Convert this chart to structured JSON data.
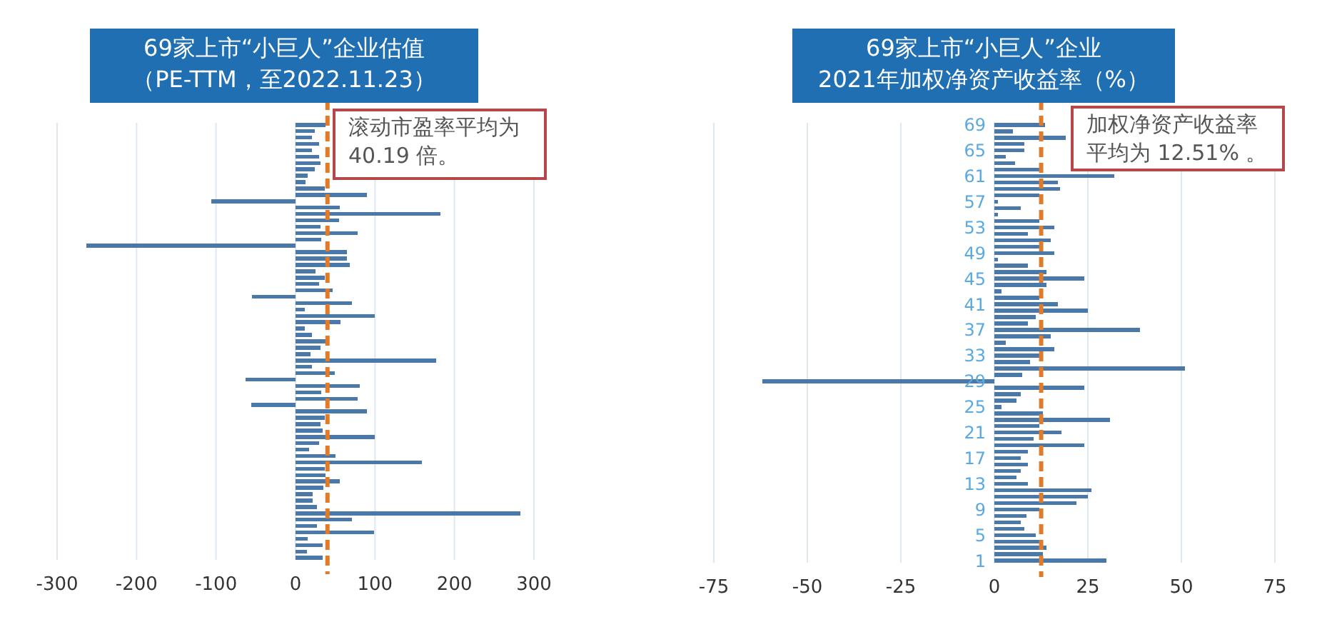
{
  "chart_data": [
    {
      "type": "bar",
      "orientation": "horizontal",
      "title": "69家上市“小巨人”企业估值",
      "subtitle": "（PE-TTM，至2022.11.23）",
      "categories": [
        null,
        null,
        null,
        null,
        null,
        null,
        null,
        null,
        null,
        null,
        null,
        null,
        null,
        null,
        null,
        null,
        null,
        null,
        null,
        null,
        null,
        null,
        null,
        null,
        null,
        null,
        null,
        null,
        null,
        null,
        null,
        null,
        null,
        null,
        null,
        null,
        null,
        null,
        null,
        null,
        null,
        null,
        null,
        null,
        null,
        null,
        null,
        null,
        null,
        null,
        null,
        null,
        null,
        null,
        null,
        null,
        null,
        null,
        null,
        null,
        null,
        null,
        null,
        null,
        null,
        null,
        null,
        null,
        null
      ],
      "values": [
        38,
        24,
        21,
        30,
        21,
        30,
        31,
        24,
        15,
        13,
        37,
        90,
        -106,
        56,
        182,
        55,
        31,
        78,
        32,
        -263,
        65,
        65,
        68,
        25,
        37,
        30,
        47,
        -55,
        71,
        12,
        100,
        57,
        12,
        21,
        38,
        31,
        19,
        177,
        21,
        49,
        -63,
        81,
        32,
        78,
        -56,
        90,
        37,
        31,
        34,
        100,
        30,
        17,
        50,
        159,
        37,
        38,
        56,
        35,
        22,
        22,
        27,
        283,
        71,
        27,
        99,
        15,
        34,
        14,
        34
      ],
      "color": "#4a78a8",
      "xlim": [
        -300,
        300
      ],
      "xticks": [
        -300,
        -200,
        -100,
        0,
        100,
        200,
        300
      ],
      "grid": "x",
      "ref_lines": [
        {
          "axis": "x",
          "value": 40.19,
          "label": "滚动市盈率平均为 40.19 倍。",
          "color": "#e07b2a",
          "line_style": "dashed"
        }
      ]
    },
    {
      "type": "bar",
      "orientation": "horizontal",
      "title": "69家上市“小巨人”企业",
      "subtitle": "2021年加权净资产收益率（%）",
      "categories": [
        "69",
        null,
        null,
        null,
        "65",
        null,
        null,
        null,
        "61",
        null,
        null,
        null,
        "57",
        null,
        null,
        null,
        "53",
        null,
        null,
        null,
        "49",
        null,
        null,
        null,
        "45",
        null,
        null,
        null,
        "41",
        null,
        null,
        null,
        "37",
        null,
        null,
        null,
        "33",
        null,
        null,
        null,
        "29",
        null,
        null,
        null,
        "25",
        null,
        null,
        null,
        "21",
        null,
        null,
        null,
        "17",
        null,
        null,
        null,
        "13",
        null,
        null,
        null,
        "9",
        null,
        null,
        null,
        "5",
        null,
        null,
        null,
        "1"
      ],
      "values": [
        13.6,
        5,
        19,
        8,
        8,
        3,
        5.5,
        12,
        32,
        17,
        17.5,
        12,
        1,
        7,
        1,
        12,
        16,
        9,
        15,
        12,
        16,
        1,
        9,
        14,
        24,
        14,
        2,
        12,
        17,
        25,
        11,
        9,
        39,
        15,
        3,
        16,
        12,
        9.5,
        51,
        7.5,
        -62,
        24,
        7,
        6,
        2,
        13,
        31,
        12,
        18,
        10.5,
        24,
        9,
        7,
        9,
        7,
        6,
        9,
        26,
        25,
        22,
        12,
        8.5,
        7,
        8,
        11,
        12,
        14,
        13,
        30
      ],
      "color": "#4a78a8",
      "xlim": [
        -75,
        75
      ],
      "xticks": [
        -75,
        -50,
        -25,
        0,
        25,
        50,
        75
      ],
      "grid": "x",
      "ref_lines": [
        {
          "axis": "x",
          "value": 12.51,
          "label": "加权净资产收益率平均为 12.51% 。",
          "color": "#e07b2a",
          "line_style": "dashed"
        }
      ]
    }
  ]
}
